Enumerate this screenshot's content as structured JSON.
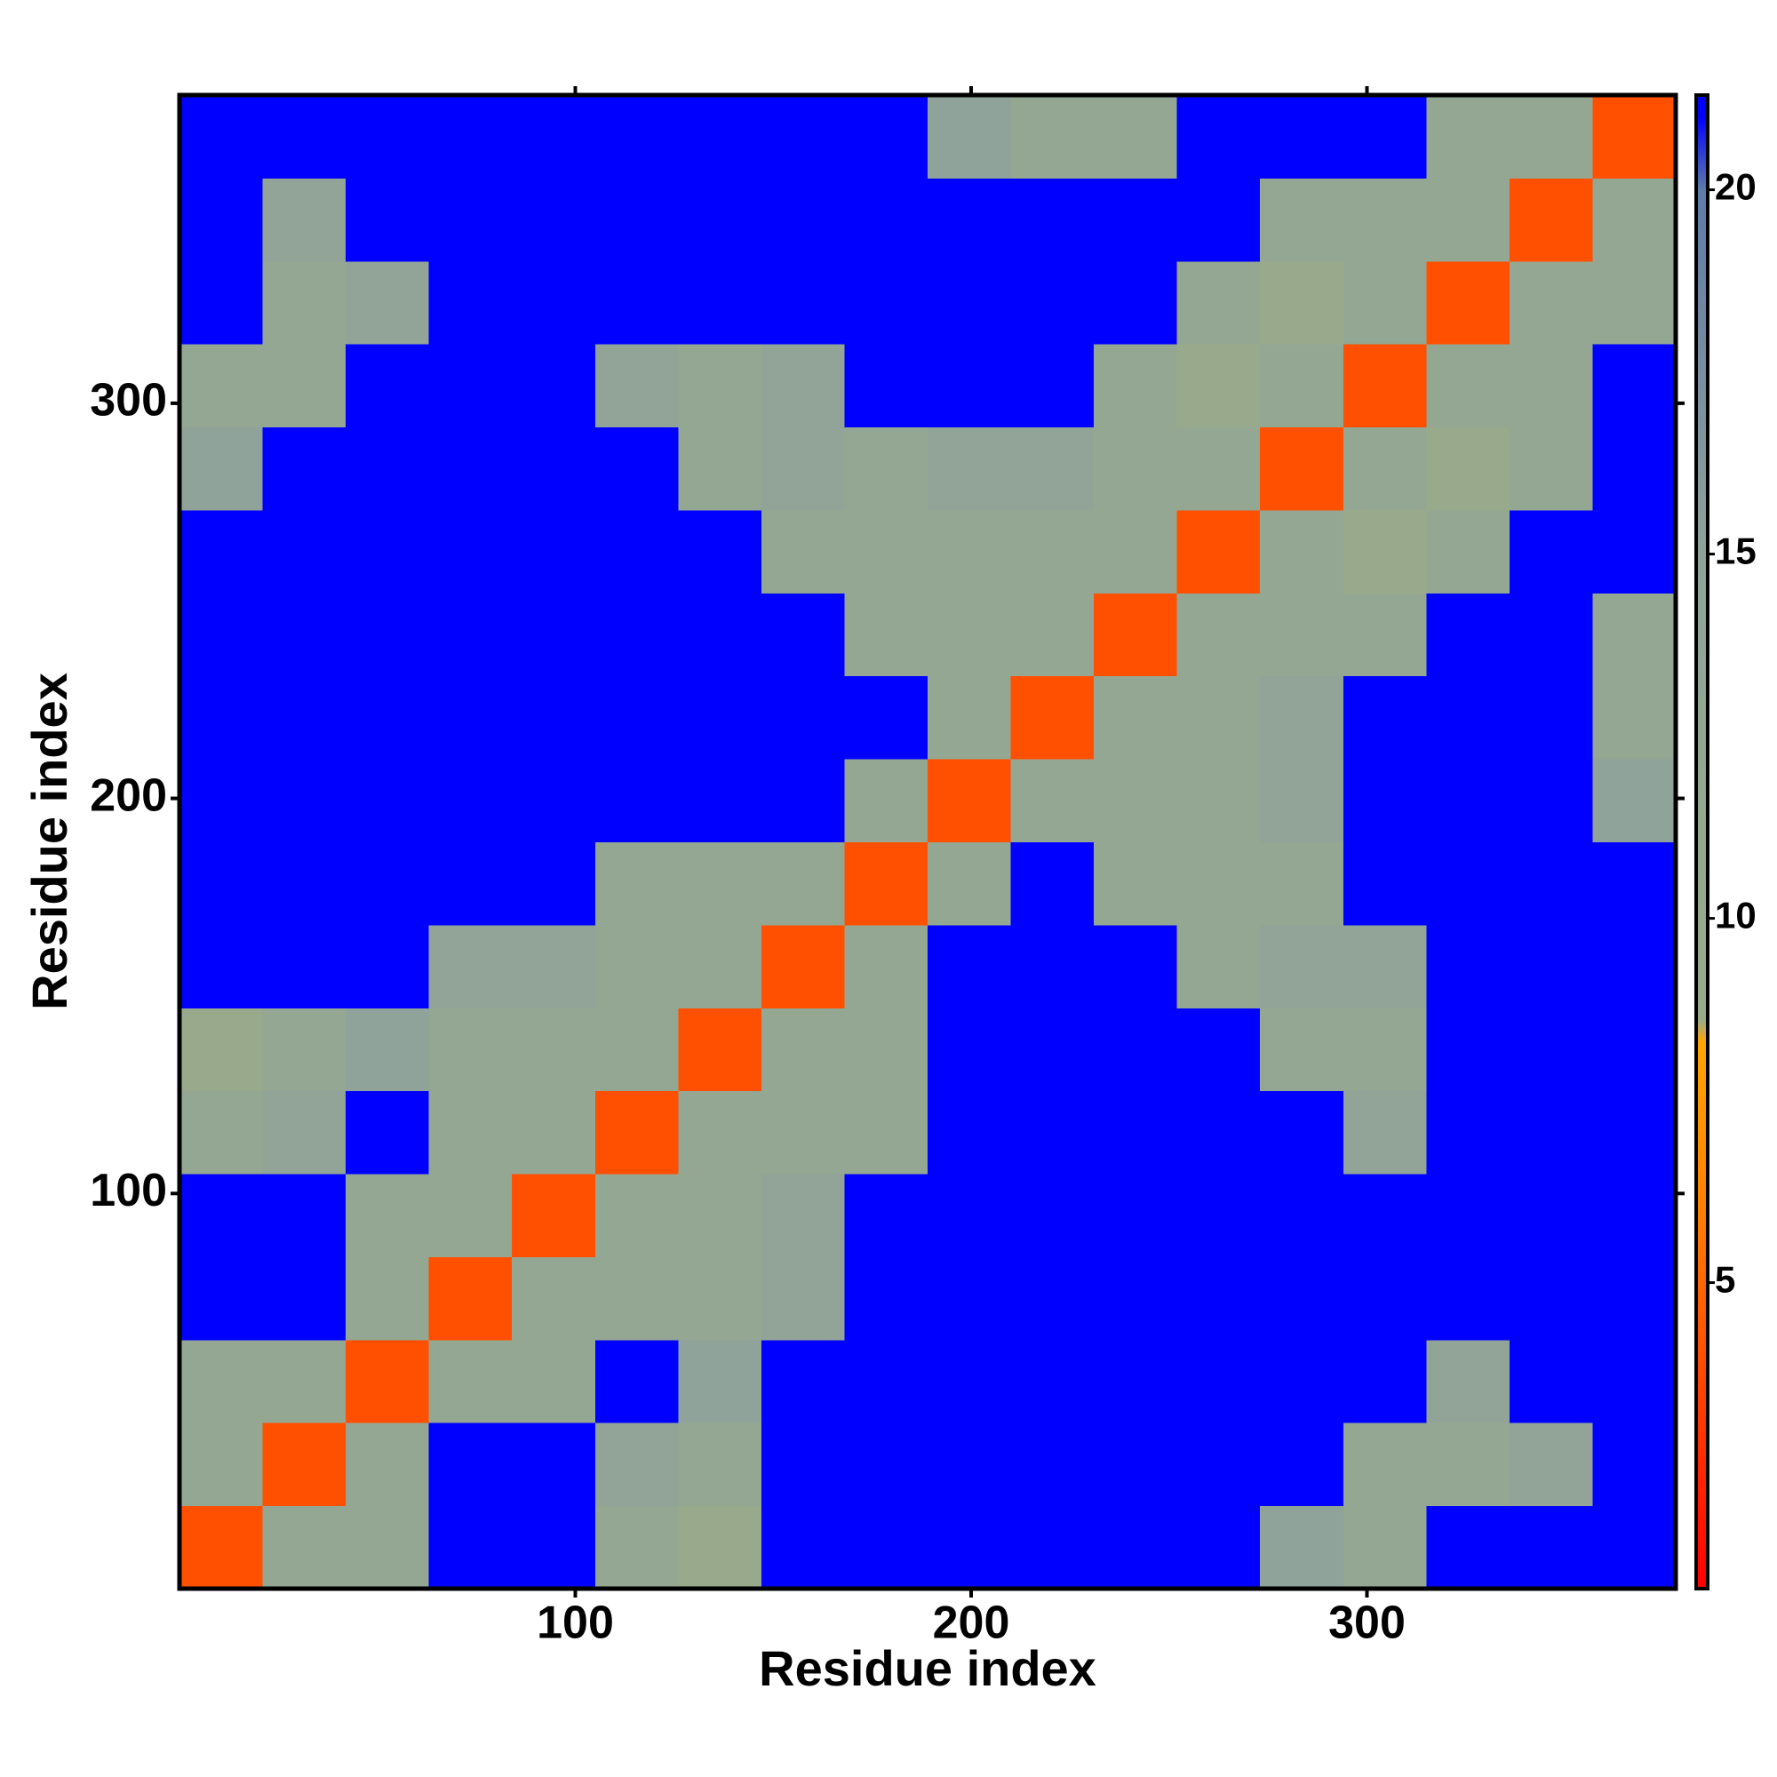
{
  "chart_data": {
    "type": "heatmap",
    "x_label": "Residue index",
    "y_label": "Residue index",
    "xbins": [
      0,
      21,
      42,
      63,
      84,
      105,
      126,
      147,
      168,
      189,
      210,
      231,
      252,
      273,
      294,
      315,
      336,
      357,
      378
    ],
    "ybins": [
      0,
      21,
      42,
      63,
      84,
      105,
      126,
      147,
      168,
      189,
      210,
      231,
      252,
      273,
      294,
      315,
      336,
      357,
      378
    ],
    "z": [
      [
        4,
        12,
        12,
        21,
        21,
        12,
        10,
        21,
        21,
        21,
        21,
        21,
        21,
        15,
        12,
        21,
        21,
        21
      ],
      [
        12,
        4,
        12,
        21,
        21,
        14,
        12,
        21,
        21,
        21,
        21,
        21,
        21,
        21,
        12,
        12,
        14,
        21
      ],
      [
        12,
        12,
        4,
        12,
        12,
        21,
        15,
        21,
        21,
        21,
        21,
        21,
        21,
        21,
        21,
        14,
        21,
        21
      ],
      [
        21,
        21,
        12,
        4,
        12,
        12,
        12,
        14,
        21,
        21,
        21,
        21,
        21,
        21,
        21,
        21,
        21,
        21
      ],
      [
        21,
        21,
        12,
        12,
        4,
        12,
        12,
        14,
        21,
        21,
        21,
        21,
        21,
        21,
        21,
        21,
        21,
        21
      ],
      [
        12,
        14,
        21,
        12,
        12,
        4,
        12,
        12,
        12,
        21,
        21,
        21,
        21,
        21,
        14,
        21,
        21,
        21
      ],
      [
        10,
        12,
        15,
        12,
        12,
        12,
        4,
        12,
        12,
        21,
        21,
        21,
        21,
        12,
        12,
        21,
        21,
        21
      ],
      [
        21,
        21,
        21,
        14,
        14,
        12,
        12,
        4,
        12,
        21,
        21,
        21,
        12,
        14,
        14,
        21,
        21,
        21
      ],
      [
        21,
        21,
        21,
        21,
        21,
        12,
        12,
        12,
        4,
        12,
        21,
        12,
        12,
        12,
        21,
        21,
        21,
        21
      ],
      [
        21,
        21,
        21,
        21,
        21,
        21,
        21,
        21,
        12,
        4,
        12,
        12,
        12,
        14,
        21,
        21,
        21,
        15
      ],
      [
        21,
        21,
        21,
        21,
        21,
        21,
        21,
        21,
        21,
        12,
        4,
        12,
        12,
        14,
        21,
        21,
        21,
        12
      ],
      [
        21,
        21,
        21,
        21,
        21,
        21,
        21,
        21,
        12,
        12,
        12,
        4,
        12,
        12,
        12,
        21,
        21,
        12
      ],
      [
        21,
        21,
        21,
        21,
        21,
        21,
        21,
        12,
        12,
        12,
        12,
        12,
        4,
        12,
        10,
        12,
        21,
        21
      ],
      [
        15,
        21,
        21,
        21,
        21,
        21,
        12,
        14,
        12,
        14,
        14,
        12,
        12,
        4,
        12,
        10,
        12,
        21
      ],
      [
        12,
        12,
        21,
        21,
        21,
        14,
        12,
        14,
        21,
        21,
        21,
        12,
        10,
        12,
        4,
        12,
        12,
        21
      ],
      [
        21,
        12,
        14,
        21,
        21,
        21,
        21,
        21,
        21,
        21,
        21,
        21,
        12,
        10,
        12,
        4,
        12,
        12
      ],
      [
        21,
        14,
        21,
        21,
        21,
        21,
        21,
        21,
        21,
        21,
        21,
        21,
        21,
        12,
        12,
        12,
        4,
        12
      ],
      [
        21,
        21,
        21,
        21,
        21,
        21,
        21,
        21,
        21,
        15,
        12,
        12,
        21,
        21,
        21,
        12,
        12,
        4
      ]
    ],
    "xlim": [
      0,
      378
    ],
    "ylim": [
      0,
      378
    ],
    "xticks": [
      100,
      200,
      300
    ],
    "yticks": [
      100,
      200,
      300
    ],
    "zlim": [
      0.8,
      21.3
    ],
    "zticks": [
      5,
      10,
      15,
      20
    ],
    "colorscale": [
      [
        0.8,
        "#ff0000"
      ],
      [
        6,
        "#ff8000"
      ],
      [
        8.3,
        "#ffa500"
      ],
      [
        8.6,
        "#9aab88"
      ],
      [
        15,
        "#8fa39a"
      ],
      [
        20,
        "#5f7ba8"
      ],
      [
        21,
        "#0000ff"
      ]
    ]
  }
}
